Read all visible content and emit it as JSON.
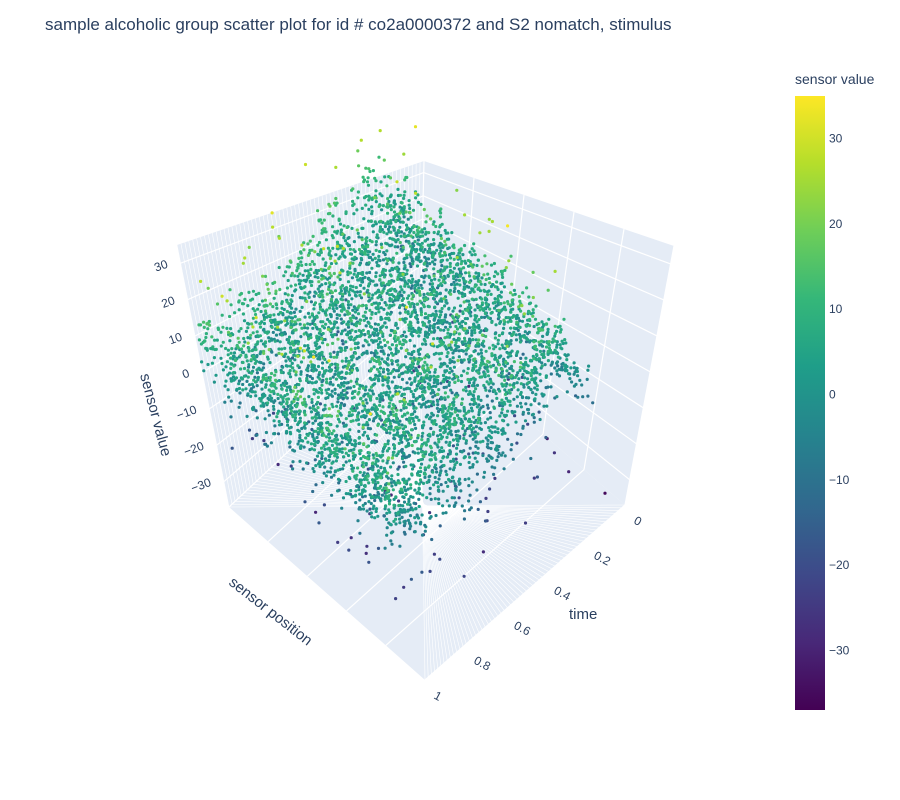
{
  "chart_data": {
    "type": "scatter3d",
    "title": "sample alcoholic group scatter plot for id # co2a0000372 and S2 nomatch, stimulus",
    "x_axis": {
      "label": "time",
      "range": [
        0,
        1
      ],
      "ticks": [
        "0",
        "0.2",
        "0.4",
        "0.6",
        "0.8",
        "1"
      ]
    },
    "y_axis": {
      "label": "sensor position",
      "categorical": true,
      "category_count": 64,
      "ticks": []
    },
    "z_axis": {
      "label": "sensor value",
      "range": [
        -37,
        35
      ],
      "ticks": [
        "−30",
        "−20",
        "−10",
        "0",
        "10",
        "20",
        "30"
      ]
    },
    "colorbar": {
      "title": "sensor value",
      "colorscale": "Viridis",
      "range": [
        -37,
        35
      ],
      "ticks": [
        "30",
        "20",
        "10",
        "0",
        "−10",
        "−20",
        "−30"
      ],
      "tick_values": [
        30,
        20,
        10,
        0,
        -10,
        -20,
        -30
      ]
    },
    "value_distribution": {
      "typical_min": -20,
      "typical_max": 20,
      "min": -37,
      "max": 35
    },
    "background_color": "#e5ecf6",
    "grid_color": "#ffffff"
  }
}
